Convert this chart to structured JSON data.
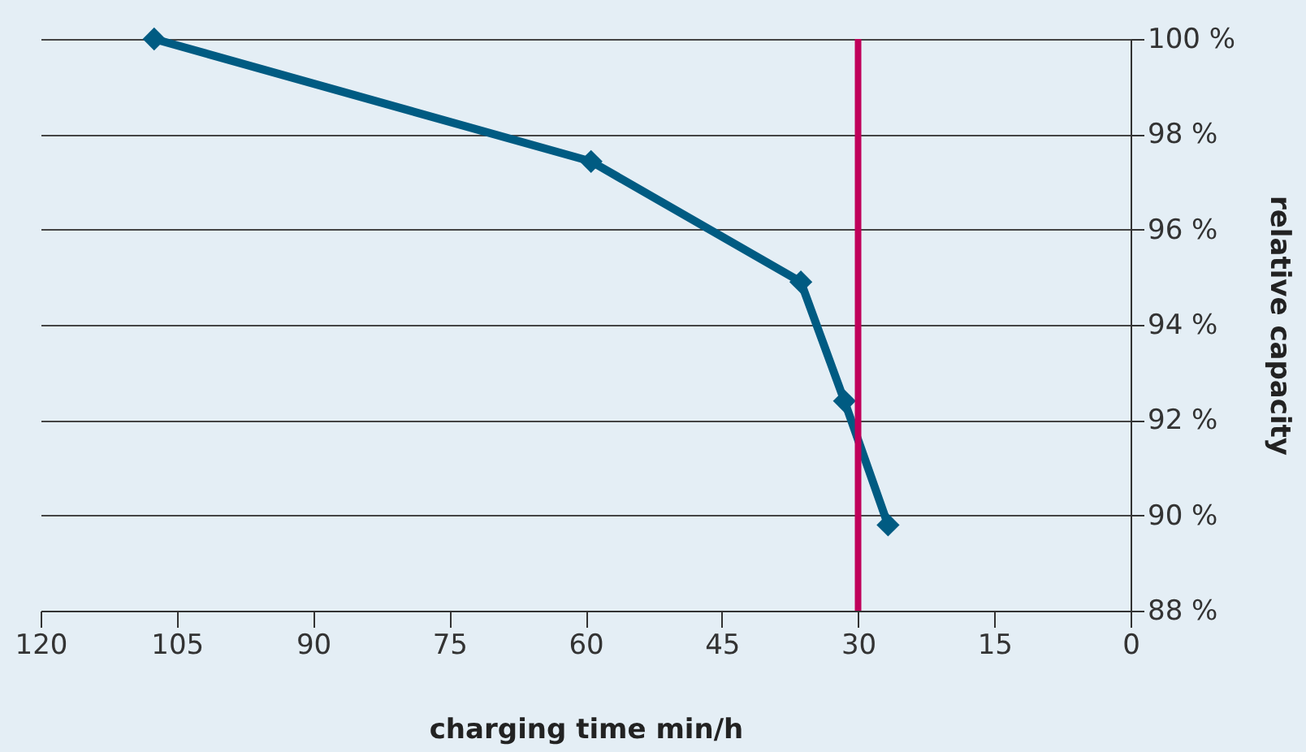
{
  "chart_data": {
    "type": "line",
    "xlabel": "charging time min/h",
    "ylabel": "relative capacity",
    "x": [
      107.5,
      59.4,
      36.3,
      31.5,
      26.7
    ],
    "series": [
      {
        "color": "#005b82",
        "values": [
          100,
          97.43,
          94.9,
          92.4,
          89.8
        ]
      }
    ],
    "xlim": [
      120,
      0
    ],
    "xticks": [
      120,
      105,
      90,
      75,
      60,
      45,
      30,
      15,
      0
    ],
    "ylim": [
      88,
      100
    ],
    "yticks": [
      {
        "value": 88,
        "label": "88 %"
      },
      {
        "value": 90,
        "label": "90 %"
      },
      {
        "value": 92,
        "label": "92 %"
      },
      {
        "value": 94,
        "label": "94 %"
      },
      {
        "value": 96,
        "label": "96 %"
      },
      {
        "value": 98,
        "label": "98 %"
      },
      {
        "value": 100,
        "label": "100 %"
      }
    ],
    "grid": "y",
    "marker": "diamond",
    "line_style": "solid",
    "ref_lines": [
      {
        "axis": "x",
        "value": 30,
        "color": "#c0005a"
      }
    ]
  }
}
